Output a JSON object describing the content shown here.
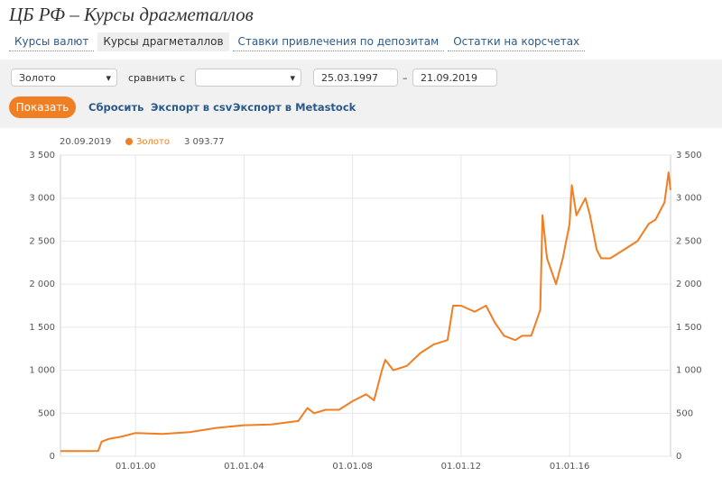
{
  "header": {
    "title": "ЦБ РФ – Курсы драгметаллов"
  },
  "tabs": [
    "Курсы валют",
    "Курсы драгметаллов",
    "Ставки привлечения по депозитам",
    "Остатки на корсчетах"
  ],
  "form": {
    "metal": "Золото",
    "compare_label": "сравнить с",
    "date_from": "25.03.1997",
    "date_sep": "–",
    "date_to": "21.09.2019",
    "buttons": [
      "Показать",
      "Сбросить",
      "Экспорт в csv",
      "Экспорт в Metastock"
    ]
  },
  "tooltip": {
    "date": "20.09.2019",
    "value": "3 093.77"
  },
  "chart_data": {
    "type": "line",
    "x": [
      "25.03.97",
      "01.01.98",
      "15.08.98",
      "01.10.98",
      "01.01.99",
      "01.07.99",
      "01.01.00",
      "01.01.01",
      "01.01.02",
      "01.01.03",
      "01.01.04",
      "01.01.05",
      "01.01.06",
      "01.05.06",
      "01.08.06",
      "01.01.07",
      "01.07.07",
      "01.01.08",
      "01.07.08",
      "15.10.08",
      "01.02.09",
      "15.03.09",
      "01.07.09",
      "01.01.10",
      "01.07.10",
      "01.01.11",
      "01.07.11",
      "15.09.11",
      "01.01.12",
      "01.07.12",
      "01.12.12",
      "01.04.13",
      "01.08.13",
      "01.01.14",
      "01.04.14",
      "01.08.14",
      "01.12.14",
      "01.01.15",
      "01.03.15",
      "01.07.15",
      "01.10.15",
      "01.01.16",
      "01.02.16",
      "01.04.16",
      "01.08.16",
      "01.10.16",
      "01.01.17",
      "01.03.17",
      "01.07.17",
      "01.01.18",
      "01.07.18",
      "01.12.18",
      "01.03.19",
      "01.07.19",
      "25.08.19",
      "20.09.19"
    ],
    "series": [
      {
        "name": "Золото",
        "color": "#f07e22",
        "values": [
          60,
          60,
          62,
          170,
          200,
          230,
          270,
          260,
          280,
          330,
          360,
          370,
          410,
          560,
          500,
          540,
          540,
          640,
          720,
          650,
          1000,
          1120,
          1000,
          1050,
          1200,
          1300,
          1350,
          1750,
          1750,
          1680,
          1750,
          1550,
          1400,
          1350,
          1400,
          1400,
          1700,
          2800,
          2300,
          2000,
          2300,
          2700,
          3150,
          2800,
          3000,
          2800,
          2400,
          2300,
          2300,
          2400,
          2500,
          2700,
          2750,
          2950,
          3300,
          3093.77
        ]
      }
    ],
    "xlim": [
      "25.03.97",
      "21.09.19"
    ],
    "xticks": [
      "01.01.00",
      "01.01.04",
      "01.01.08",
      "01.01.12",
      "01.01.16"
    ],
    "ylim": [
      0,
      3500
    ],
    "yticks": [
      0,
      500,
      {
        "value": 1000,
        "label": "1 000"
      },
      {
        "value": 1500,
        "label": "1 500"
      },
      {
        "value": 2000,
        "label": "2 000"
      },
      {
        "value": 2500,
        "label": "2 500"
      },
      {
        "value": 3000,
        "label": "3 000"
      },
      {
        "value": 3500,
        "label": "3 500"
      }
    ],
    "grid": true
  }
}
